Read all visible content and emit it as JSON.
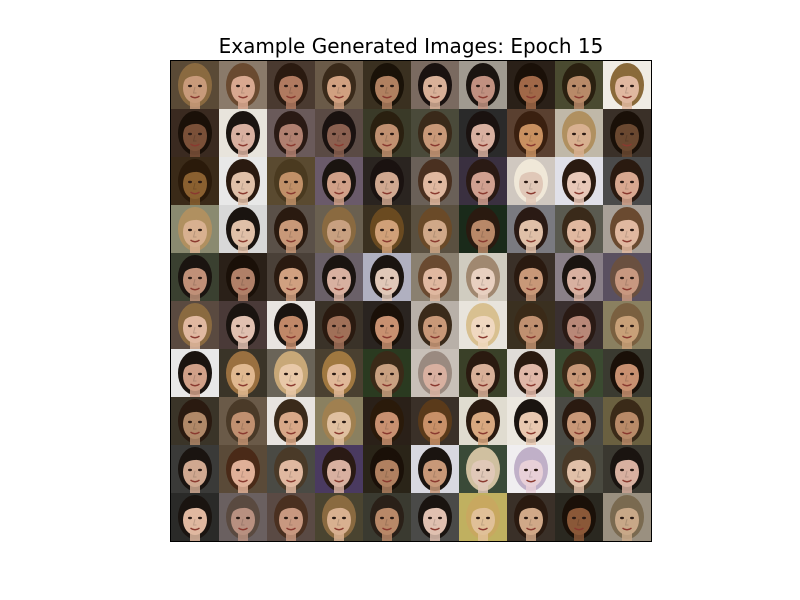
{
  "figure": {
    "title": "Example Generated Images: Epoch 15"
  },
  "grid": {
    "rows": 10,
    "cols": 10,
    "tiles": [
      {
        "bg": "#5a4a36",
        "skin": "#c89a7a",
        "hair": "#8a6a40"
      },
      {
        "bg": "#8a7a6a",
        "skin": "#d8a890",
        "hair": "#6a4a30"
      },
      {
        "bg": "#4a3a30",
        "skin": "#b07a60",
        "hair": "#2a1a10"
      },
      {
        "bg": "#6a5a48",
        "skin": "#d0a080",
        "hair": "#3a2a1a"
      },
      {
        "bg": "#3a3020",
        "skin": "#b08060",
        "hair": "#1a1208"
      },
      {
        "bg": "#7a6a60",
        "skin": "#d8b098",
        "hair": "#1a1210"
      },
      {
        "bg": "#a09a90",
        "skin": "#c09080",
        "hair": "#1a1410"
      },
      {
        "bg": "#2a2018",
        "skin": "#a06848",
        "hair": "#1a1008"
      },
      {
        "bg": "#4a4a30",
        "skin": "#b88a68",
        "hair": "#2a2010"
      },
      {
        "bg": "#f0ece4",
        "skin": "#e0b8a0",
        "hair": "#8a6a3a"
      },
      {
        "bg": "#3a2a20",
        "skin": "#7a5038",
        "hair": "#1a1008"
      },
      {
        "bg": "#e8e4dc",
        "skin": "#d8b0a0",
        "hair": "#1a1410"
      },
      {
        "bg": "#6a5a5a",
        "skin": "#b08070",
        "hair": "#2a1a14"
      },
      {
        "bg": "#5a4a44",
        "skin": "#8a6050",
        "hair": "#1a1210"
      },
      {
        "bg": "#3a3a28",
        "skin": "#c09070",
        "hair": "#2a2010"
      },
      {
        "bg": "#4a4a3a",
        "skin": "#c89878",
        "hair": "#3a2a1a"
      },
      {
        "bg": "#2a2a2a",
        "skin": "#d8b0a0",
        "hair": "#1a1210"
      },
      {
        "bg": "#5a4030",
        "skin": "#c89060",
        "hair": "#3a2010"
      },
      {
        "bg": "#c0b8a8",
        "skin": "#d8b090",
        "hair": "#b09060"
      },
      {
        "bg": "#3a3028",
        "skin": "#6a4830",
        "hair": "#1a1008"
      },
      {
        "bg": "#3a2a18",
        "skin": "#8a6030",
        "hair": "#2a1a0a"
      },
      {
        "bg": "#e8e8e8",
        "skin": "#e0c0a8",
        "hair": "#2a1a10"
      },
      {
        "bg": "#5a4a30",
        "skin": "#c09068",
        "hair": "#4a3a20"
      },
      {
        "bg": "#6a5a6a",
        "skin": "#d0a088",
        "hair": "#1a1410"
      },
      {
        "bg": "#2a2420",
        "skin": "#d0a890",
        "hair": "#1a1210"
      },
      {
        "bg": "#6a6058",
        "skin": "#e0b8a0",
        "hair": "#4a3020"
      },
      {
        "bg": "#3a3040",
        "skin": "#d0a090",
        "hair": "#2a1a14"
      },
      {
        "bg": "#d0c8c0",
        "skin": "#e0c8b8",
        "hair": "#f0e8d8"
      },
      {
        "bg": "#e0e0e8",
        "skin": "#e8c8b8",
        "hair": "#2a1a10"
      },
      {
        "bg": "#4a4a4a",
        "skin": "#d8a890",
        "hair": "#2a1a10"
      },
      {
        "bg": "#8a8a70",
        "skin": "#d8b090",
        "hair": "#b09060"
      },
      {
        "bg": "#d8d8d8",
        "skin": "#e0c0a8",
        "hair": "#1a1410"
      },
      {
        "bg": "#5a5048",
        "skin": "#c89878",
        "hair": "#2a1a10"
      },
      {
        "bg": "#6a6050",
        "skin": "#c8a080",
        "hair": "#8a6a40"
      },
      {
        "bg": "#3a3020",
        "skin": "#d0a078",
        "hair": "#6a4a20"
      },
      {
        "bg": "#5a5040",
        "skin": "#d0a888",
        "hair": "#6a4a28"
      },
      {
        "bg": "#1a2a1a",
        "skin": "#b88868",
        "hair": "#2a1a10"
      },
      {
        "bg": "#7a7a80",
        "skin": "#e0c0a8",
        "hair": "#2a1a14"
      },
      {
        "bg": "#5a5a50",
        "skin": "#e0b8a0",
        "hair": "#3a2a1a"
      },
      {
        "bg": "#a8a098",
        "skin": "#e0b8a0",
        "hair": "#6a4a30"
      },
      {
        "bg": "#3a4030",
        "skin": "#c09078",
        "hair": "#1a1410"
      },
      {
        "bg": "#2a2018",
        "skin": "#b08068",
        "hair": "#1a1008"
      },
      {
        "bg": "#4a4038",
        "skin": "#d0a080",
        "hair": "#2a1a10"
      },
      {
        "bg": "#6a6068",
        "skin": "#d8b0a0",
        "hair": "#1a1410"
      },
      {
        "bg": "#b0b0c0",
        "skin": "#e0c8b8",
        "hair": "#1a1410"
      },
      {
        "bg": "#8a8070",
        "skin": "#e0b8a0",
        "hair": "#6a4a30"
      },
      {
        "bg": "#d0ccc0",
        "skin": "#e8d0c0",
        "hair": "#a08870"
      },
      {
        "bg": "#3a3028",
        "skin": "#c89878",
        "hair": "#2a1a10"
      },
      {
        "bg": "#8a8088",
        "skin": "#d8b0a0",
        "hair": "#1a1410"
      },
      {
        "bg": "#5a5060",
        "skin": "#c89880",
        "hair": "#6a5040"
      },
      {
        "bg": "#5a4a40",
        "skin": "#e0b8a0",
        "hair": "#8a6a40"
      },
      {
        "bg": "#4a3a38",
        "skin": "#e0c0b0",
        "hair": "#1a1410"
      },
      {
        "bg": "#e8e4e0",
        "skin": "#c08868",
        "hair": "#1a1410"
      },
      {
        "bg": "#3a3228",
        "skin": "#a07058",
        "hair": "#2a1a10"
      },
      {
        "bg": "#2a2420",
        "skin": "#c89070",
        "hair": "#1a1008"
      },
      {
        "bg": "#b8b0a8",
        "skin": "#c89878",
        "hair": "#3a2a1a"
      },
      {
        "bg": "#e8e4dc",
        "skin": "#f0d8c0",
        "hair": "#d8c090"
      },
      {
        "bg": "#3a3020",
        "skin": "#c09070",
        "hair": "#3a2a18"
      },
      {
        "bg": "#3a3030",
        "skin": "#b88878",
        "hair": "#2a1a14"
      },
      {
        "bg": "#8a8060",
        "skin": "#c8a078",
        "hair": "#7a6040"
      },
      {
        "bg": "#e8e8e8",
        "skin": "#d0a088",
        "hair": "#1a1410"
      },
      {
        "bg": "#3a3428",
        "skin": "#e0b890",
        "hair": "#9a7040"
      },
      {
        "bg": "#6a6458",
        "skin": "#e8c8a8",
        "hair": "#c8a878"
      },
      {
        "bg": "#4a4030",
        "skin": "#e0b898",
        "hair": "#a07840"
      },
      {
        "bg": "#2a3a20",
        "skin": "#c8a080",
        "hair": "#3a2a18"
      },
      {
        "bg": "#c8c0b8",
        "skin": "#d8b0a0",
        "hair": "#9a8a80"
      },
      {
        "bg": "#3a4028",
        "skin": "#d8b098",
        "hair": "#2a1a10"
      },
      {
        "bg": "#e0dcd8",
        "skin": "#e0b8a8",
        "hair": "#2a1a10"
      },
      {
        "bg": "#3a4a30",
        "skin": "#c89878",
        "hair": "#3a2a18"
      },
      {
        "bg": "#3a3a30",
        "skin": "#c89070",
        "hair": "#1a1008"
      },
      {
        "bg": "#3a3428",
        "skin": "#b08868",
        "hair": "#2a1a10"
      },
      {
        "bg": "#6a5a48",
        "skin": "#c09070",
        "hair": "#4a3a28"
      },
      {
        "bg": "#e8e4e0",
        "skin": "#d8a888",
        "hair": "#3a2a1a"
      },
      {
        "bg": "#8a8060",
        "skin": "#e0c0a0",
        "hair": "#a08050"
      },
      {
        "bg": "#2a2018",
        "skin": "#c89070",
        "hair": "#2a1a0a"
      },
      {
        "bg": "#3a3028",
        "skin": "#c89068",
        "hair": "#5a3a1a"
      },
      {
        "bg": "#e0dcd0",
        "skin": "#d8a880",
        "hair": "#2a1a10"
      },
      {
        "bg": "#ece8e0",
        "skin": "#e8c8b0",
        "hair": "#1a1410"
      },
      {
        "bg": "#4a4a44",
        "skin": "#c89878",
        "hair": "#2a1a10"
      },
      {
        "bg": "#6a6040",
        "skin": "#b88a68",
        "hair": "#3a2a18"
      },
      {
        "bg": "#3a3a38",
        "skin": "#d0a890",
        "hair": "#1a1410"
      },
      {
        "bg": "#5a4a38",
        "skin": "#e0b098",
        "hair": "#4a2a18"
      },
      {
        "bg": "#4a4a44",
        "skin": "#e0b8a0",
        "hair": "#4a3a28"
      },
      {
        "bg": "#4a3a60",
        "skin": "#d8b0a0",
        "hair": "#2a1a14"
      },
      {
        "bg": "#2a2418",
        "skin": "#b08060",
        "hair": "#1a1008"
      },
      {
        "bg": "#d8d8e0",
        "skin": "#c89878",
        "hair": "#1a1410"
      },
      {
        "bg": "#3a4a38",
        "skin": "#e0c8b8",
        "hair": "#d0c0a0"
      },
      {
        "bg": "#f0eef0",
        "skin": "#e8d0d8",
        "hair": "#c0b0c8"
      },
      {
        "bg": "#4a4a40",
        "skin": "#e0c0a8",
        "hair": "#4a3a28"
      },
      {
        "bg": "#3a3830",
        "skin": "#d8b0a0",
        "hair": "#1a1410"
      },
      {
        "bg": "#2a2a28",
        "skin": "#e0b8a0",
        "hair": "#1a1410"
      },
      {
        "bg": "#6a6060",
        "skin": "#b89080",
        "hair": "#5a4a40"
      },
      {
        "bg": "#5a4a44",
        "skin": "#c89880",
        "hair": "#4a3020"
      },
      {
        "bg": "#4a4430",
        "skin": "#d8b090",
        "hair": "#8a6a40"
      },
      {
        "bg": "#3a3a30",
        "skin": "#b88868",
        "hair": "#2a2018"
      },
      {
        "bg": "#4a4a48",
        "skin": "#e0c0b0",
        "hair": "#1a1410"
      },
      {
        "bg": "#c0b060",
        "skin": "#e0c098",
        "hair": "#c8a860"
      },
      {
        "bg": "#3a3028",
        "skin": "#d0a888",
        "hair": "#2a1a10"
      },
      {
        "bg": "#2a2820",
        "skin": "#8a5838",
        "hair": "#1a1008"
      },
      {
        "bg": "#9a9080",
        "skin": "#c8a888",
        "hair": "#7a6a50"
      }
    ]
  }
}
